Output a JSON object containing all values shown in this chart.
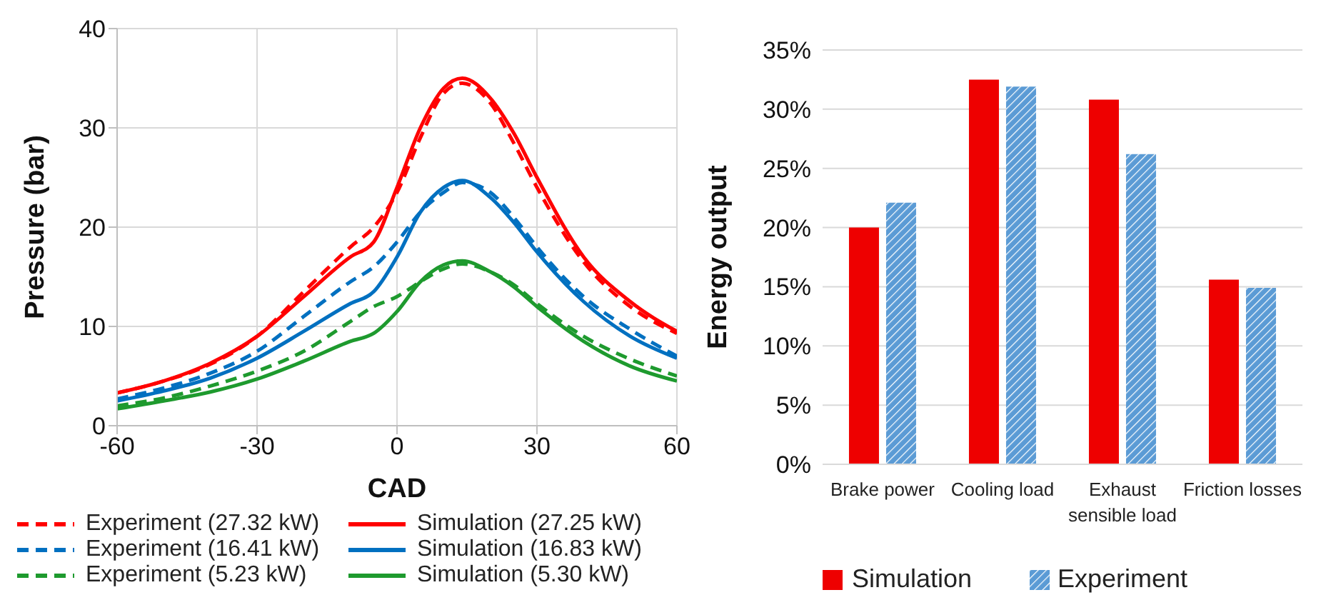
{
  "chart_data": [
    {
      "type": "line",
      "xlabel": "CAD",
      "ylabel": "Pressure (bar)",
      "x": [
        -60,
        -50,
        -40,
        -30,
        -20,
        -10,
        -5,
        0,
        5,
        10,
        14,
        20,
        25,
        30,
        40,
        50,
        60
      ],
      "xlim": [
        -60,
        60
      ],
      "xticks": [
        -60,
        -30,
        0,
        30,
        60
      ],
      "ylim": [
        0,
        40
      ],
      "yticks": [
        0,
        10,
        20,
        30,
        40
      ],
      "grid": true,
      "legend": "bottom",
      "marker": "none",
      "series": [
        {
          "name": "Experiment (27.32 kW)",
          "color": "#ff0000",
          "line_style": "dashed",
          "values": [
            3.3,
            4.5,
            6.2,
            9,
            13.5,
            18,
            20,
            23.5,
            29,
            33.5,
            34.5,
            32.5,
            28.5,
            24,
            16.5,
            12,
            9.3
          ]
        },
        {
          "name": "Simulation (27.25 kW)",
          "color": "#ff0000",
          "line_style": "solid",
          "values": [
            3.3,
            4.5,
            6.3,
            9,
            13,
            17,
            18.5,
            24,
            30,
            34,
            35,
            33,
            29.5,
            25,
            17,
            12.5,
            9.5
          ]
        },
        {
          "name": "Experiment (16.41 kW)",
          "color": "#0070c0",
          "line_style": "dashed",
          "values": [
            2.7,
            3.8,
            5.3,
            7.5,
            11,
            14.5,
            16,
            18.5,
            21.5,
            23.5,
            24.5,
            23.5,
            21,
            18,
            13,
            9.7,
            7
          ]
        },
        {
          "name": "Simulation (16.83 kW)",
          "color": "#0070c0",
          "line_style": "solid",
          "values": [
            2.5,
            3.5,
            4.8,
            6.8,
            9.5,
            12.3,
            13.5,
            17,
            21.5,
            24,
            24.7,
            23,
            20.5,
            17.5,
            12.5,
            9,
            6.8
          ]
        },
        {
          "name": "Experiment (5.23 kW)",
          "color": "#1e9a2e",
          "line_style": "dashed",
          "values": [
            2,
            2.8,
            4,
            5.5,
            7.5,
            10.5,
            12,
            13,
            14.5,
            15.8,
            16.3,
            15.5,
            14.2,
            12.3,
            9,
            6.7,
            5
          ]
        },
        {
          "name": "Simulation (5.30 kW)",
          "color": "#1e9a2e",
          "line_style": "solid",
          "values": [
            1.7,
            2.5,
            3.4,
            4.7,
            6.5,
            8.5,
            9.3,
            11.5,
            14.5,
            16.2,
            16.6,
            15.5,
            14,
            12,
            8.5,
            6,
            4.5
          ]
        }
      ]
    },
    {
      "type": "bar",
      "ylabel": "Energy output",
      "categories": [
        "Brake power",
        "Cooling load",
        "Exhaust sensible load",
        "Friction losses"
      ],
      "ylim": [
        0,
        35
      ],
      "yticks": [
        {
          "value": 0,
          "label": "0%"
        },
        {
          "value": 5,
          "label": "5%"
        },
        {
          "value": 10,
          "label": "10%"
        },
        {
          "value": 15,
          "label": "15%"
        },
        {
          "value": 20,
          "label": "20%"
        },
        {
          "value": 25,
          "label": "25%"
        },
        {
          "value": 30,
          "label": "30%"
        },
        {
          "value": 35,
          "label": "35%"
        }
      ],
      "grid": "y",
      "legend": "bottom",
      "series": [
        {
          "name": "Simulation",
          "color": "#ee0000",
          "values": [
            20,
            32.5,
            30.8,
            15.6
          ]
        },
        {
          "name": "Experiment",
          "color": "#5b9bd5",
          "values": [
            22.1,
            31.9,
            26.2,
            14.9
          ]
        }
      ]
    }
  ]
}
